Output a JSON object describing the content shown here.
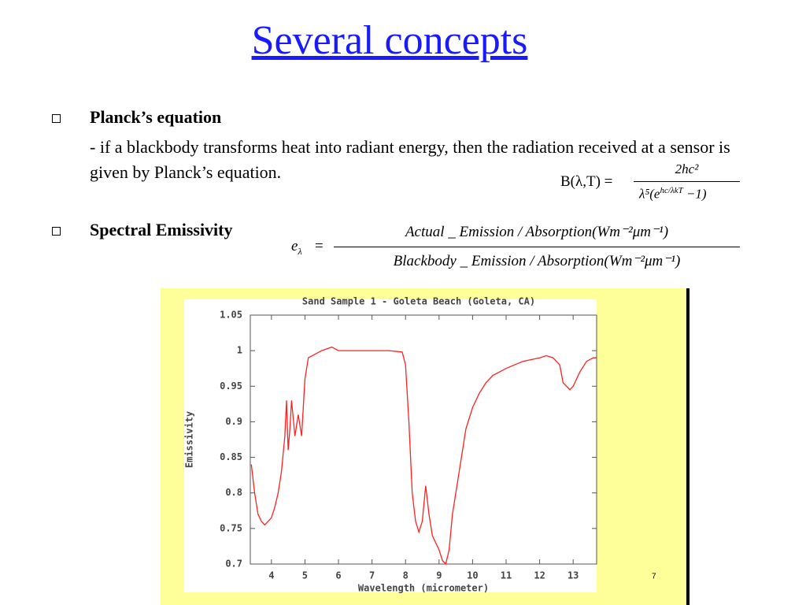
{
  "header": {
    "title": "Several concepts"
  },
  "bullets": [
    {
      "heading": "Planck’s equation",
      "text": "- if a blackbody transforms heat into radiant energy, then the radiation received at a sensor is given by Planck’s equation."
    },
    {
      "heading": "Spectral Emissivity"
    }
  ],
  "planck_equation": {
    "lhs": "B(λ,T) =",
    "numerator": "2hc²",
    "denominator_base": "λ⁵(e",
    "denominator_exponent": "hc/λkT",
    "denominator_end": "−1)"
  },
  "emissivity_equation": {
    "lhs": "e",
    "lhs_subscript": "λ",
    "equals": "=",
    "numerator": "Actual _ Emission / Absorption(Wm⁻²μm⁻¹)",
    "denominator": "Blackbody _ Emission / Absorption(Wm⁻²μm⁻¹)"
  },
  "page_number": "7",
  "chart_data": {
    "type": "line",
    "title": "Sand Sample 1 - Goleta Beach (Goleta, CA)",
    "x_label": "Wavelength (micrometer)",
    "y_label": "Emissivity",
    "x": [
      3.4,
      3.5,
      3.6,
      3.7,
      3.8,
      3.9,
      4.0,
      4.1,
      4.2,
      4.3,
      4.4,
      4.45,
      4.5,
      4.55,
      4.6,
      4.7,
      4.8,
      4.9,
      5.0,
      5.1,
      5.3,
      5.5,
      5.8,
      6.0,
      6.5,
      7.0,
      7.5,
      7.9,
      8.0,
      8.1,
      8.2,
      8.3,
      8.4,
      8.5,
      8.6,
      8.7,
      8.8,
      8.9,
      9.0,
      9.1,
      9.2,
      9.3,
      9.4,
      9.6,
      9.8,
      10.0,
      10.2,
      10.4,
      10.6,
      10.8,
      11.0,
      11.5,
      12.0,
      12.2,
      12.4,
      12.6,
      12.7,
      12.8,
      12.9,
      13.0,
      13.2,
      13.4,
      13.6,
      13.7
    ],
    "values": [
      0.84,
      0.8,
      0.77,
      0.76,
      0.755,
      0.76,
      0.765,
      0.78,
      0.8,
      0.83,
      0.88,
      0.93,
      0.86,
      0.89,
      0.93,
      0.88,
      0.91,
      0.88,
      0.96,
      0.99,
      0.995,
      1.0,
      1.005,
      1.0,
      1.0,
      1.0,
      1.0,
      0.998,
      0.98,
      0.9,
      0.8,
      0.76,
      0.745,
      0.76,
      0.81,
      0.77,
      0.74,
      0.73,
      0.72,
      0.705,
      0.7,
      0.72,
      0.77,
      0.83,
      0.89,
      0.92,
      0.94,
      0.955,
      0.965,
      0.97,
      0.975,
      0.985,
      0.99,
      0.993,
      0.99,
      0.98,
      0.955,
      0.95,
      0.945,
      0.95,
      0.97,
      0.985,
      0.99,
      0.99
    ],
    "color": "#ff2020",
    "xlim": [
      3.37,
      13.7
    ],
    "xticks": [
      4,
      5,
      6,
      7,
      8,
      9,
      10,
      11,
      12,
      13
    ],
    "ylim": [
      0.7,
      1.05
    ],
    "yticks": [
      0.7,
      0.75,
      0.8,
      0.85,
      0.9,
      0.95,
      1,
      1.05
    ]
  }
}
